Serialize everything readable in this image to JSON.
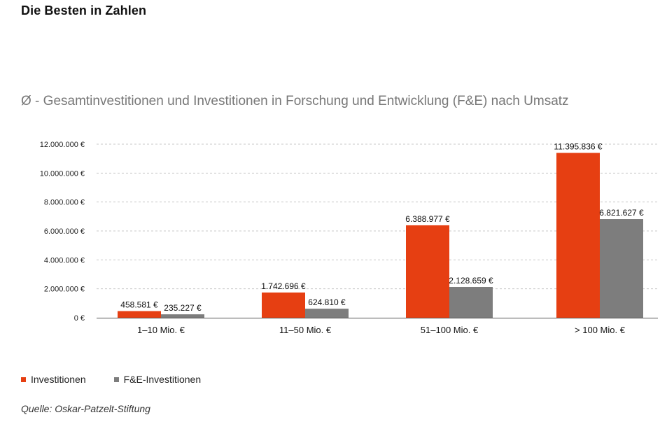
{
  "heading": "Die Besten in Zahlen",
  "source": "Quelle: Oskar-Patzelt-Stiftung",
  "colors": {
    "investitionen": "#e63f12",
    "fe_investitionen": "#7d7d7d",
    "grid": "#c8c8c8"
  },
  "chart_data": {
    "type": "bar",
    "title": "Ø - Gesamtinvestitionen und Investitionen in Forschung und Entwicklung (F&E) nach Umsatz",
    "categories": [
      "1–10 Mio. €",
      "11–50 Mio. €",
      "51–100 Mio. €",
      "> 100 Mio. €"
    ],
    "series": [
      {
        "name": "Investitionen",
        "values": [
          458581,
          1742696,
          6388977,
          11395836
        ],
        "labels": [
          "458.581 €",
          "1.742.696 €",
          "6.388.977 €",
          "11.395.836 €"
        ]
      },
      {
        "name": "F&E-Investitionen",
        "values": [
          235227,
          624810,
          2128659,
          6821627
        ],
        "labels": [
          "235.227 €",
          "624.810 €",
          "2.128.659 €",
          "6.821.627 €"
        ]
      }
    ],
    "ylim": [
      0,
      12000000
    ],
    "yticks": [
      0,
      2000000,
      4000000,
      6000000,
      8000000,
      10000000,
      12000000
    ],
    "ytick_labels": [
      "0 €",
      "2.000.000 €",
      "4.000.000 €",
      "6.000.000 €",
      "8.000.000 €",
      "10.000.000 €",
      "12.000.000 €"
    ],
    "grid": true,
    "legend": "bottom-left"
  }
}
